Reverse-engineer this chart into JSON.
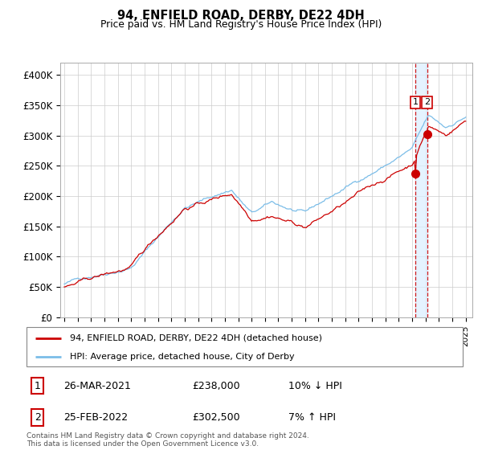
{
  "title": "94, ENFIELD ROAD, DERBY, DE22 4DH",
  "subtitle": "Price paid vs. HM Land Registry's House Price Index (HPI)",
  "ylim": [
    0,
    420000
  ],
  "yticks": [
    0,
    50000,
    100000,
    150000,
    200000,
    250000,
    300000,
    350000,
    400000
  ],
  "ytick_labels": [
    "£0",
    "£50K",
    "£100K",
    "£150K",
    "£200K",
    "£250K",
    "£300K",
    "£350K",
    "£400K"
  ],
  "hpi_color": "#7bbde8",
  "price_color": "#cc0000",
  "shade_color": "#daeeff",
  "grid_color": "#cccccc",
  "background_color": "#ffffff",
  "legend_label_price": "94, ENFIELD ROAD, DERBY, DE22 4DH (detached house)",
  "legend_label_hpi": "HPI: Average price, detached house, City of Derby",
  "transaction1_label": "1",
  "transaction1_date": "26-MAR-2021",
  "transaction1_price": "£238,000",
  "transaction1_hpi": "10% ↓ HPI",
  "transaction2_label": "2",
  "transaction2_date": "25-FEB-2022",
  "transaction2_price": "£302,500",
  "transaction2_hpi": "7% ↑ HPI",
  "footer": "Contains HM Land Registry data © Crown copyright and database right 2024.\nThis data is licensed under the Open Government Licence v3.0.",
  "transaction1_x_year": 2021.23,
  "transaction2_x_year": 2022.12,
  "transaction1_y": 238000,
  "transaction2_y": 302500,
  "xlim_left": 1994.7,
  "xlim_right": 2025.5
}
